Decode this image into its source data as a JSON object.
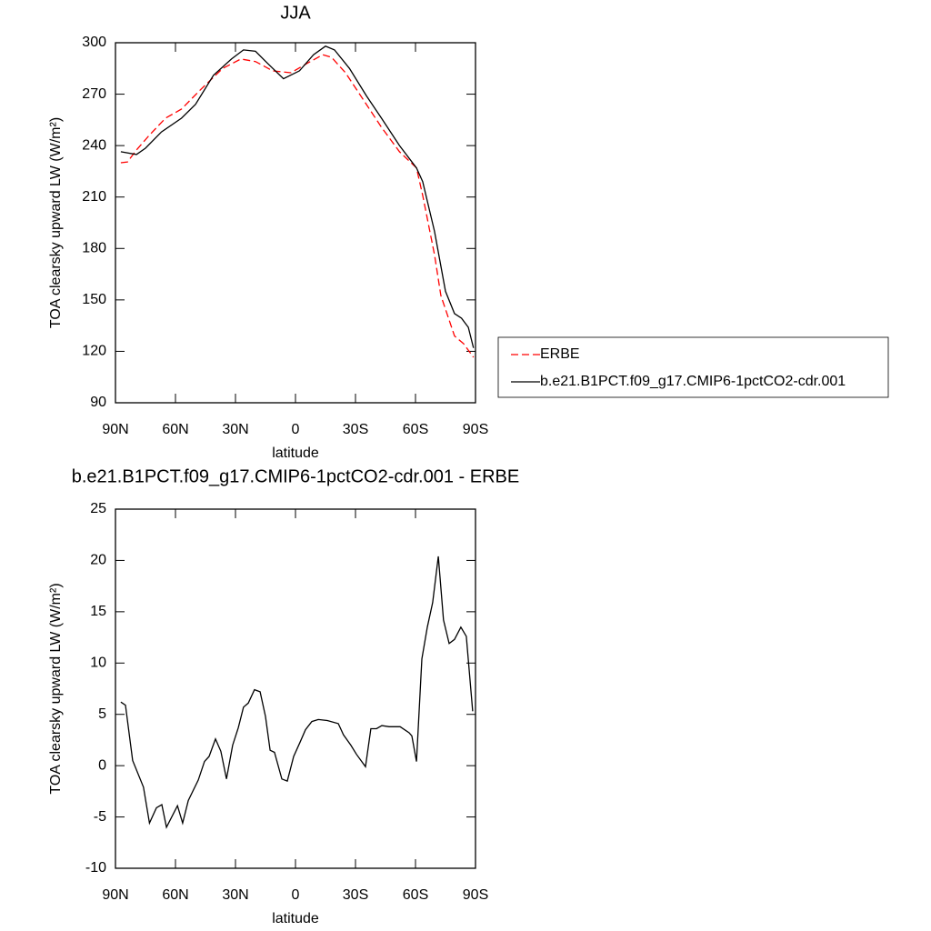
{
  "chart_data": [
    {
      "type": "line",
      "title": "JJA",
      "xlabel": "latitude",
      "ylabel": "TOA clearsky upward LW (W/m²)",
      "xlim": [
        90,
        -90
      ],
      "xticks": [
        {
          "value": 90,
          "label": "90N"
        },
        {
          "value": 60,
          "label": "60N"
        },
        {
          "value": 30,
          "label": "30N"
        },
        0,
        {
          "value": -30,
          "label": "30S"
        },
        {
          "value": -60,
          "label": "60S"
        },
        {
          "value": -90,
          "label": "90S"
        }
      ],
      "ylim": [
        90,
        300
      ],
      "yticks": [
        90,
        120,
        150,
        180,
        210,
        240,
        270,
        300
      ],
      "legend": "right",
      "series": [
        {
          "name": "ERBE",
          "color": "#ff0000",
          "line_style": "dashed",
          "x": [
            87.3,
            84,
            79.5,
            73.6,
            65,
            57,
            48,
            36.4,
            27.3,
            20,
            11.4,
            2.3,
            -5.9,
            -13.6,
            -18,
            -25,
            -34,
            -43,
            -52,
            -60.5,
            -63.6,
            -69.5,
            -72.7,
            -79.5,
            -84,
            -89
          ],
          "values": [
            230,
            230.5,
            237.4,
            245.4,
            256,
            261.3,
            272,
            285,
            290.5,
            289,
            283.6,
            282.5,
            288,
            293,
            291.5,
            282.5,
            266.6,
            250.7,
            236.4,
            227,
            211,
            176.4,
            152.6,
            129,
            124.5,
            116.5
          ]
        },
        {
          "name": "b.e21.B1PCT.f09_g17.CMIP6-1pctCO2-cdr.001",
          "color": "#000000",
          "line_style": "solid",
          "x": [
            87.3,
            79.5,
            75,
            67,
            57,
            50,
            41,
            32,
            26,
            20,
            14,
            6,
            -2,
            -9,
            -15,
            -19.5,
            -27,
            -35.5,
            -43,
            -52,
            -60.5,
            -63.6,
            -69.5,
            -75,
            -79.5,
            -83,
            -86.4,
            -89
          ],
          "values": [
            236.4,
            234.8,
            238.5,
            248,
            256,
            264,
            281,
            290.5,
            295.8,
            295,
            288,
            279,
            283.6,
            293,
            298,
            295.8,
            285,
            269,
            256,
            240,
            227,
            219,
            190,
            155,
            142,
            139.3,
            134,
            122
          ]
        }
      ]
    },
    {
      "type": "line",
      "title": "b.e21.B1PCT.f09_g17.CMIP6-1pctCO2-cdr.001 - ERBE",
      "xlabel": "latitude",
      "ylabel": "TOA clearsky upward LW (W/m²)",
      "xlim": [
        90,
        -90
      ],
      "xticks": [
        {
          "value": 90,
          "label": "90N"
        },
        {
          "value": 60,
          "label": "60N"
        },
        {
          "value": 30,
          "label": "30N"
        },
        0,
        {
          "value": -30,
          "label": "30S"
        },
        {
          "value": -60,
          "label": "60S"
        },
        {
          "value": -90,
          "label": "90S"
        }
      ],
      "ylim": [
        -10,
        25
      ],
      "yticks": [
        -10,
        -5,
        0,
        5,
        10,
        15,
        20,
        25
      ],
      "color": "#000000",
      "x": [
        87.3,
        85,
        81.4,
        76,
        73,
        69.5,
        66.8,
        64.5,
        59,
        56.4,
        53.6,
        48.6,
        45.5,
        43.2,
        40,
        37.3,
        34.5,
        31.4,
        28.6,
        26,
        23.6,
        20.5,
        17.7,
        15,
        12.7,
        10.5,
        6.8,
        4.1,
        0.9,
        -2.3,
        -5,
        -8.2,
        -11.4,
        -15.9,
        -21.4,
        -24,
        -27.7,
        -30.5,
        -35,
        -37.7,
        -40.5,
        -43.2,
        -46.8,
        -52.3,
        -56.8,
        -58.2,
        -60.5,
        -63.2,
        -65.9,
        -68.6,
        -71.4,
        -74,
        -76.8,
        -79.5,
        -82.7,
        -85.4,
        -88.6
      ],
      "values": [
        6.2,
        5.9,
        0.5,
        -2.1,
        -5.6,
        -4.1,
        -3.8,
        -6.0,
        -3.9,
        -5.6,
        -3.4,
        -1.4,
        0.4,
        0.9,
        2.6,
        1.4,
        -1.3,
        2.0,
        3.7,
        5.7,
        6.1,
        7.4,
        7.2,
        4.8,
        1.5,
        1.3,
        -1.3,
        -1.5,
        0.9,
        2.3,
        3.5,
        4.3,
        4.5,
        4.4,
        4.1,
        3.0,
        2.0,
        1.1,
        -0.1,
        3.6,
        3.6,
        3.9,
        3.8,
        3.8,
        3.2,
        2.9,
        0.4,
        10.4,
        13.5,
        15.9,
        20.4,
        14.2,
        11.9,
        12.3,
        13.5,
        12.6,
        5.3
      ]
    }
  ]
}
